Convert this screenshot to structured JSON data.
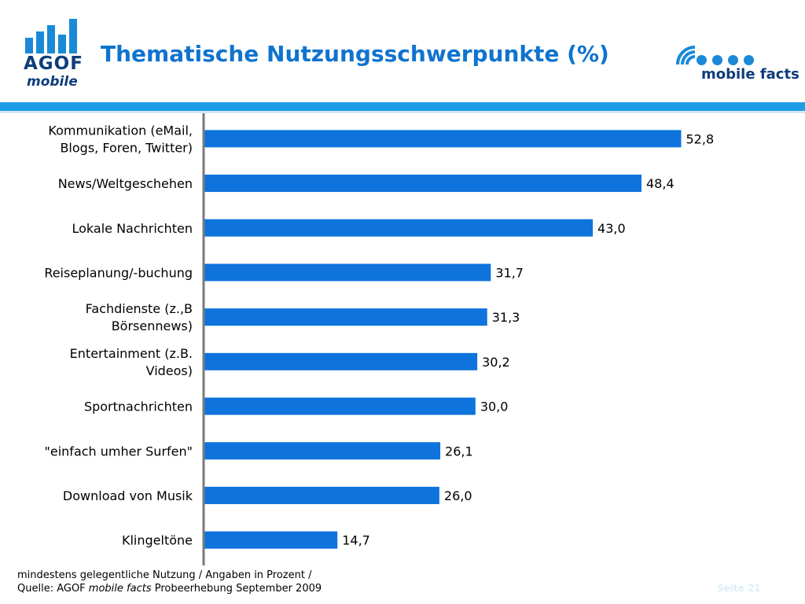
{
  "logos": {
    "agof_text": "AGOF",
    "agof_sub": "mobile",
    "mobile_facts_text": "mobile facts"
  },
  "colors": {
    "bar": "#0f73dd",
    "title": "#0f73cf",
    "rule": "#1e9ce6"
  },
  "chart_data": {
    "type": "bar",
    "orientation": "horizontal",
    "title": "Thematische Nutzungsschwerpunkte (%)",
    "categories": [
      [
        "Kommunikation (eMail,",
        "Blogs, Foren, Twitter)"
      ],
      [
        "News/Weltgeschehen"
      ],
      [
        "Lokale Nachrichten"
      ],
      [
        "Reiseplanung/-buchung"
      ],
      [
        "Fachdienste (z.,B",
        "Börsennews)"
      ],
      [
        "Entertainment (z.B.",
        "Videos)"
      ],
      [
        "Sportnachrichten"
      ],
      [
        "\"einfach umher Surfen\""
      ],
      [
        "Download von Musik"
      ],
      [
        "Klingeltöne"
      ]
    ],
    "values": [
      52.8,
      48.4,
      43.0,
      31.7,
      31.3,
      30.2,
      30.0,
      26.1,
      26.0,
      14.7
    ],
    "value_labels": [
      "52,8",
      "48,4",
      "43,0",
      "31,7",
      "31,3",
      "30,2",
      "30,0",
      "26,1",
      "26,0",
      "14,7"
    ],
    "xlim": [
      0,
      60
    ],
    "grid": false,
    "legend": "none"
  },
  "footnote": {
    "line1": "mindestens gelegentliche Nutzung / Angaben in Prozent /",
    "line2_prefix": "Quelle: AGOF ",
    "line2_italic": "mobile facts",
    "line2_suffix": " Probeerhebung September 2009"
  },
  "page_number": "Seite 21"
}
